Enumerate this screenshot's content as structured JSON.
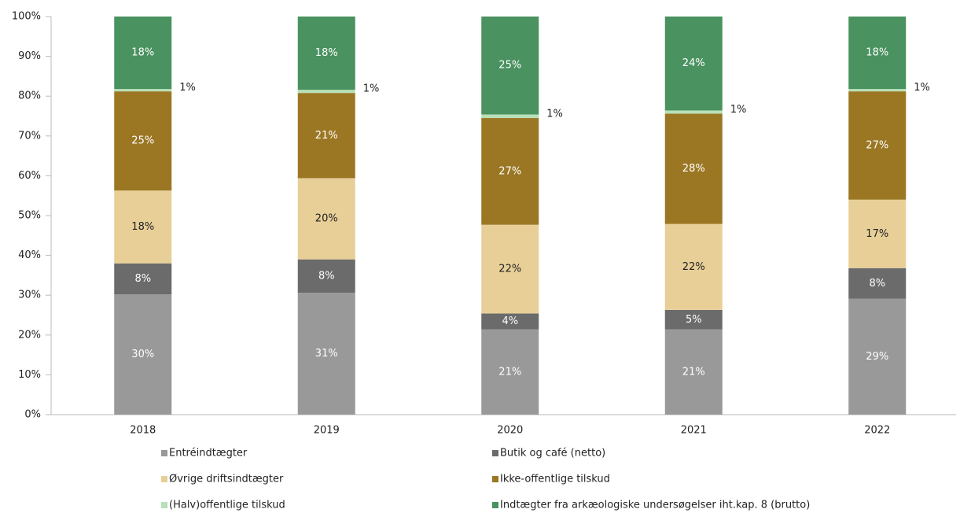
{
  "chart_data": {
    "type": "stacked_bar",
    "categories": [
      "2018",
      "2019",
      "2020",
      "2021",
      "2022"
    ],
    "series": [
      {
        "name": "Entréindtægter",
        "color": "#999999",
        "label_color": "#ffffff",
        "values": [
          30.2,
          30.6,
          21.4,
          21.4,
          29.1
        ],
        "value_labels": [
          "30%",
          "31%",
          "21%",
          "21%",
          "29%"
        ]
      },
      {
        "name": "Butik og café (netto)",
        "color": "#6b6b6b",
        "label_color": "#ffffff",
        "values": [
          7.8,
          8.4,
          4.0,
          4.9,
          7.7
        ],
        "value_labels": [
          "8%",
          "8%",
          "4%",
          "5%",
          "8%"
        ]
      },
      {
        "name": "Øvrige driftsindtægter",
        "color": "#e8cf98",
        "label_color": "#222222",
        "values": [
          18.3,
          20.4,
          22.3,
          21.6,
          17.2
        ],
        "value_labels": [
          "18%",
          "20%",
          "22%",
          "22%",
          "17%"
        ]
      },
      {
        "name": "Ikke-offentlige tilskud",
        "color": "#9b7724",
        "label_color": "#ffffff",
        "values": [
          24.9,
          21.4,
          26.8,
          27.7,
          27.2
        ],
        "value_labels": [
          "25%",
          "21%",
          "27%",
          "28%",
          "27%"
        ]
      },
      {
        "name": "(Halv)offentlige tilskud",
        "color": "#b8e0b8",
        "label_color": "#222222",
        "label_outside": true,
        "values": [
          0.6,
          0.8,
          0.9,
          0.8,
          0.6
        ],
        "value_labels": [
          "1%",
          "1%",
          "1%",
          "1%",
          "1%"
        ]
      },
      {
        "name": "Indtægter fra arkæologiske undersøgelser iht.kap. 8 (brutto)",
        "color": "#4a9260",
        "label_color": "#ffffff",
        "values": [
          18.2,
          18.4,
          24.6,
          23.6,
          18.2
        ],
        "value_labels": [
          "18%",
          "18%",
          "25%",
          "24%",
          "18%"
        ]
      }
    ],
    "ylim": [
      0,
      100
    ],
    "yticks": [
      {
        "value": 0,
        "label": "0%"
      },
      {
        "value": 10,
        "label": "10%"
      },
      {
        "value": 20,
        "label": "20%"
      },
      {
        "value": 30,
        "label": "30%"
      },
      {
        "value": 40,
        "label": "40%"
      },
      {
        "value": 50,
        "label": "50%"
      },
      {
        "value": 60,
        "label": "60%"
      },
      {
        "value": 70,
        "label": "70%"
      },
      {
        "value": 80,
        "label": "80%"
      },
      {
        "value": 90,
        "label": "90%"
      },
      {
        "value": 100,
        "label": "100%"
      }
    ],
    "legend": "bottom"
  }
}
